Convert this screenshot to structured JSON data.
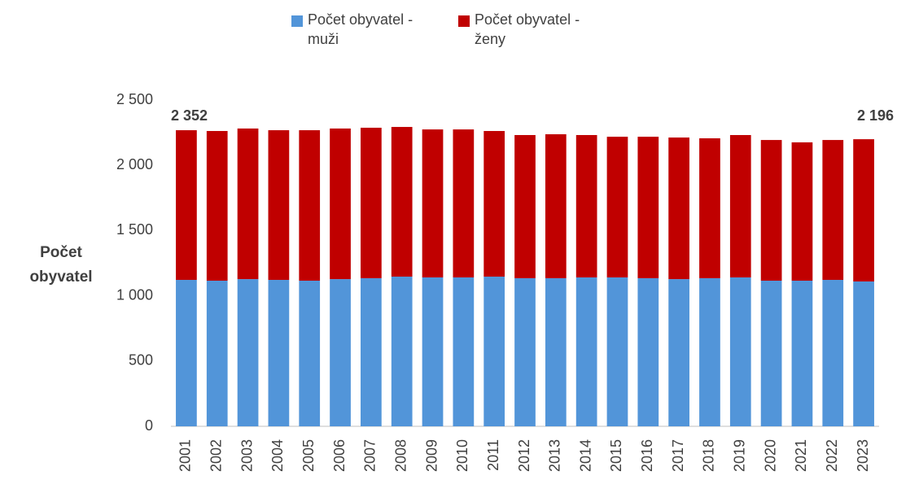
{
  "chart_data": {
    "type": "stacked_bar",
    "y_label": "Počet obyvatel",
    "categories": [
      "2001",
      "2002",
      "2003",
      "2004",
      "2005",
      "2006",
      "2007",
      "2008",
      "2009",
      "2010",
      "2011",
      "2012",
      "2013",
      "2014",
      "2015",
      "2016",
      "2017",
      "2018",
      "2019",
      "2020",
      "2021",
      "2022",
      "2023"
    ],
    "series": [
      {
        "name": "Počet obyvatel - muži",
        "color": "#5295d9",
        "values": [
          1122,
          1116,
          1128,
          1122,
          1116,
          1128,
          1135,
          1147,
          1141,
          1141,
          1147,
          1135,
          1135,
          1141,
          1141,
          1135,
          1128,
          1135,
          1141,
          1116,
          1116,
          1122,
          1110
        ]
      },
      {
        "name": "Počet obyvatel - ženy",
        "color": "#c00000",
        "values": [
          1147,
          1147,
          1154,
          1147,
          1153,
          1154,
          1153,
          1147,
          1134,
          1134,
          1116,
          1097,
          1103,
          1091,
          1078,
          1084,
          1085,
          1072,
          1091,
          1078,
          1060,
          1072,
          1090
        ]
      }
    ],
    "annotations": [
      "2 352",
      "2 196"
    ],
    "ylim": [
      0,
      2500
    ],
    "yticks": [
      0,
      500,
      {
        "value": 1000,
        "label": "1 000"
      },
      {
        "value": 1500,
        "label": "1 500"
      },
      {
        "value": 2000,
        "label": "2 000"
      },
      {
        "value": 2500,
        "label": "2 500"
      }
    ],
    "grid": false,
    "legend": "top"
  }
}
